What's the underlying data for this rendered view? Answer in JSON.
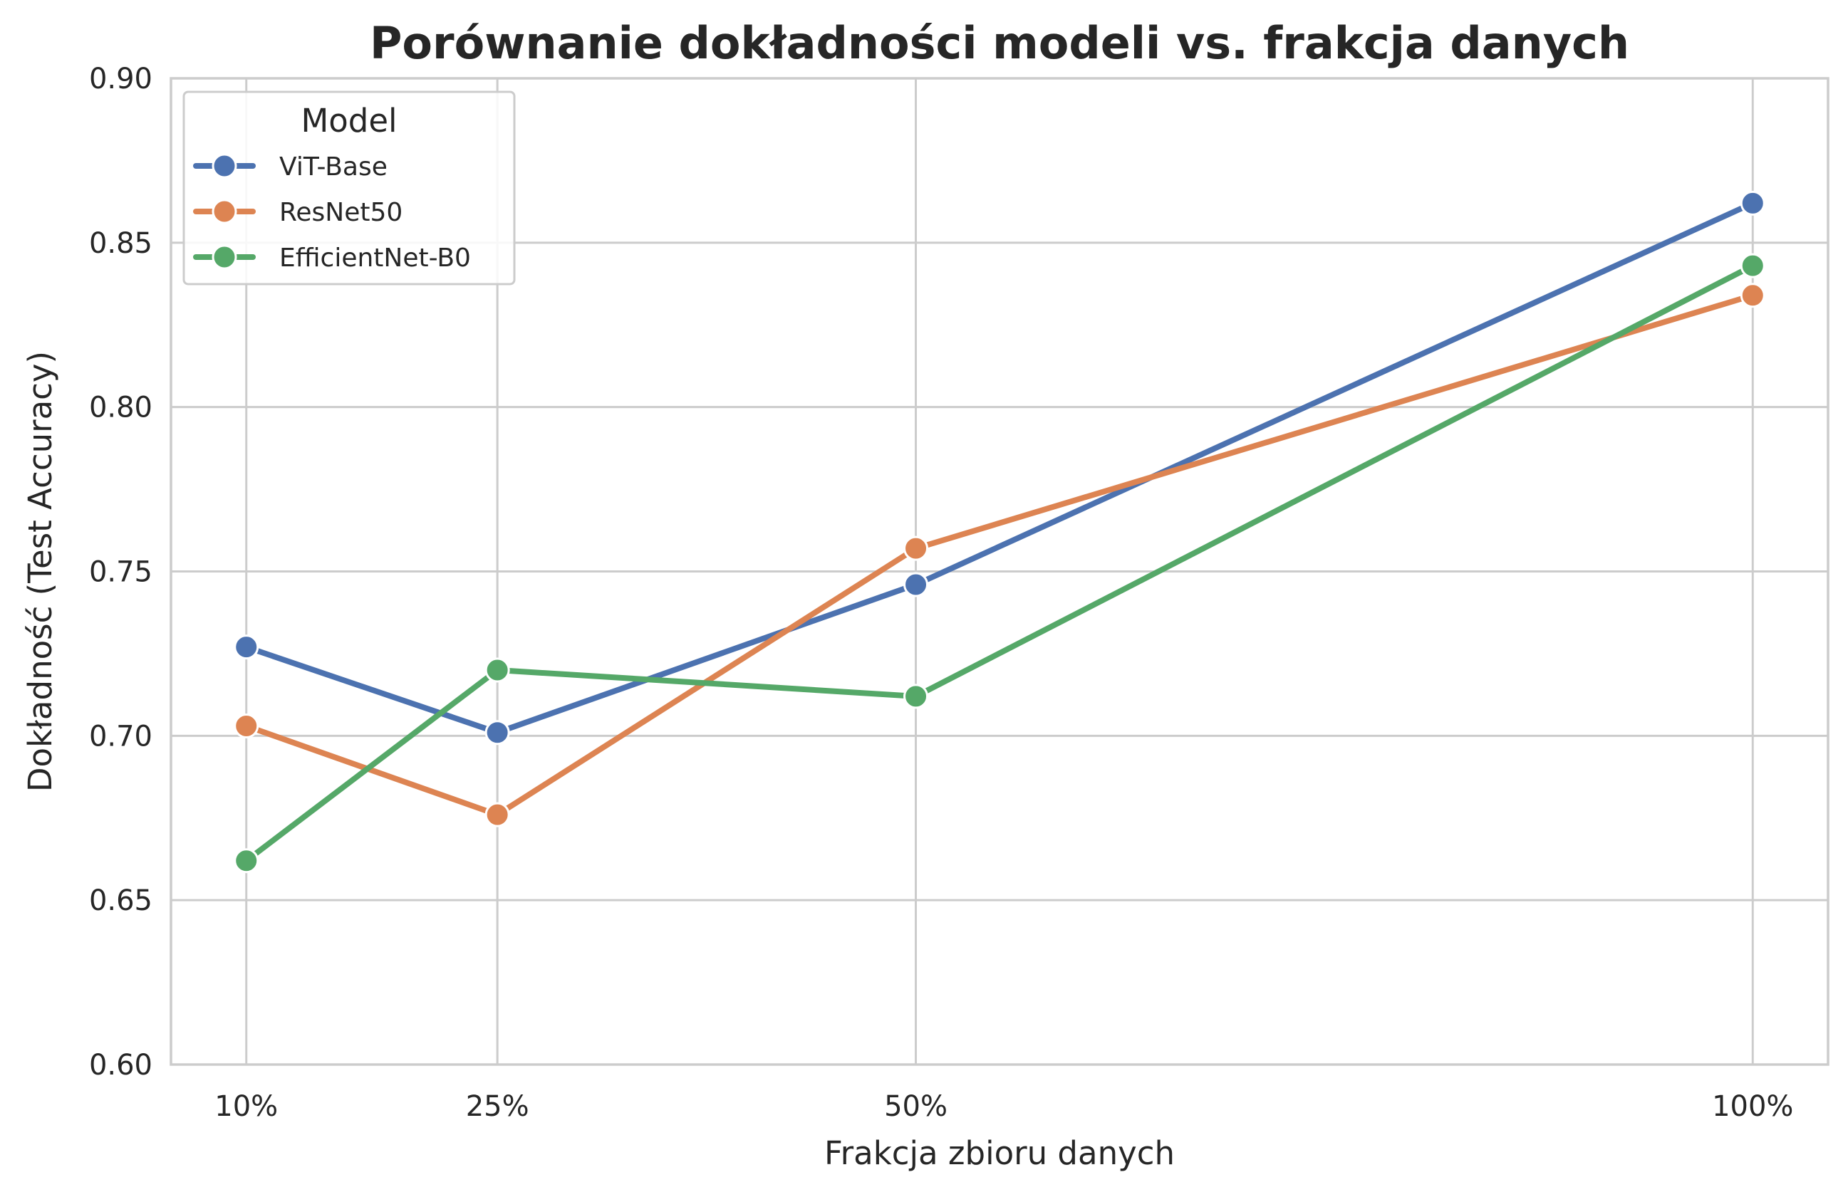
{
  "chart_data": {
    "type": "line",
    "title": "Porównanie dokładności modeli vs. frakcja danych",
    "xlabel": "Frakcja zbioru danych",
    "ylabel": "Dokładność (Test Accuracy)",
    "x": [
      10,
      25,
      50,
      100
    ],
    "x_tick_labels": [
      "10%",
      "25%",
      "50%",
      "100%"
    ],
    "xlim": [
      5.5,
      104.5
    ],
    "ylim": [
      0.6,
      0.9
    ],
    "y_ticks": [
      0.6,
      0.65,
      0.7,
      0.75,
      0.8,
      0.85,
      0.9
    ],
    "y_tick_labels": [
      "0.60",
      "0.65",
      "0.70",
      "0.75",
      "0.80",
      "0.85",
      "0.90"
    ],
    "grid": true,
    "legend": {
      "title": "Model",
      "position": "top-left"
    },
    "series": [
      {
        "name": "ViT-Base",
        "color": "#4c72b0",
        "values": [
          0.727,
          0.701,
          0.746,
          0.862
        ]
      },
      {
        "name": "ResNet50",
        "color": "#dd8452",
        "values": [
          0.703,
          0.676,
          0.757,
          0.834
        ]
      },
      {
        "name": "EfficientNet-B0",
        "color": "#55a868",
        "values": [
          0.662,
          0.72,
          0.712,
          0.843
        ]
      }
    ]
  }
}
